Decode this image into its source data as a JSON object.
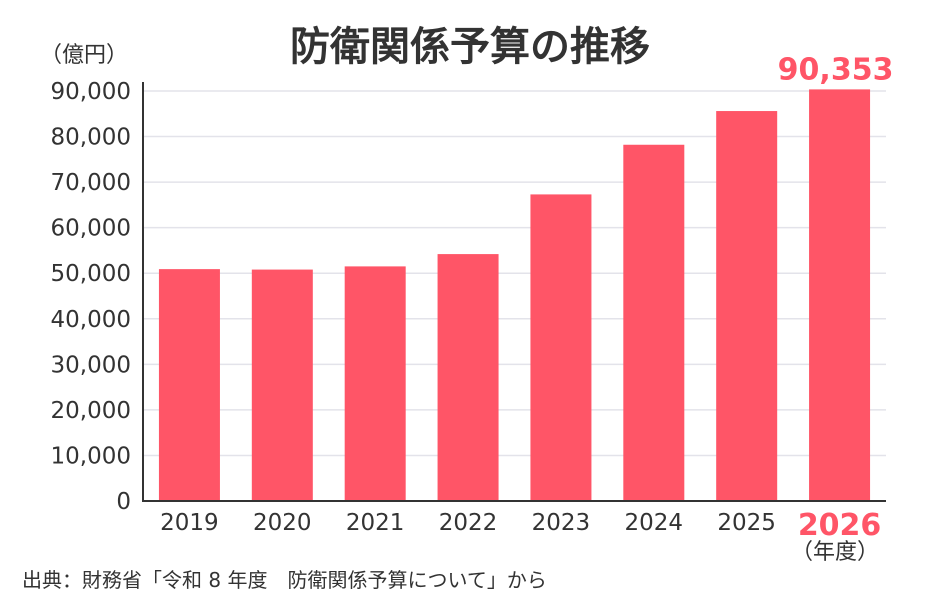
{
  "chart_data": {
    "type": "bar",
    "title": "防衛関係予算の推移",
    "ylabel": "（億円）",
    "xlabel": "（年度）",
    "categories": [
      "2019",
      "2020",
      "2021",
      "2022",
      "2023",
      "2024",
      "2025",
      "2026"
    ],
    "values": [
      50900,
      50800,
      51500,
      54200,
      67300,
      78200,
      85600,
      90353
    ],
    "highlight_index": 7,
    "highlight_label": "90,353",
    "ylim": [
      0,
      90000
    ],
    "yticks": [
      0,
      10000,
      20000,
      30000,
      40000,
      50000,
      60000,
      70000,
      80000,
      90000
    ],
    "ytick_labels": [
      "0",
      "10,000",
      "20,000",
      "30,000",
      "40,000",
      "50,000",
      "60,000",
      "70,000",
      "80,000",
      "90,000"
    ],
    "grid": true,
    "bar_color": "#ff5567",
    "highlight_color": "#ff5567"
  },
  "source": "出典：財務省「令和 8 年度　防衛関係予算について」から"
}
